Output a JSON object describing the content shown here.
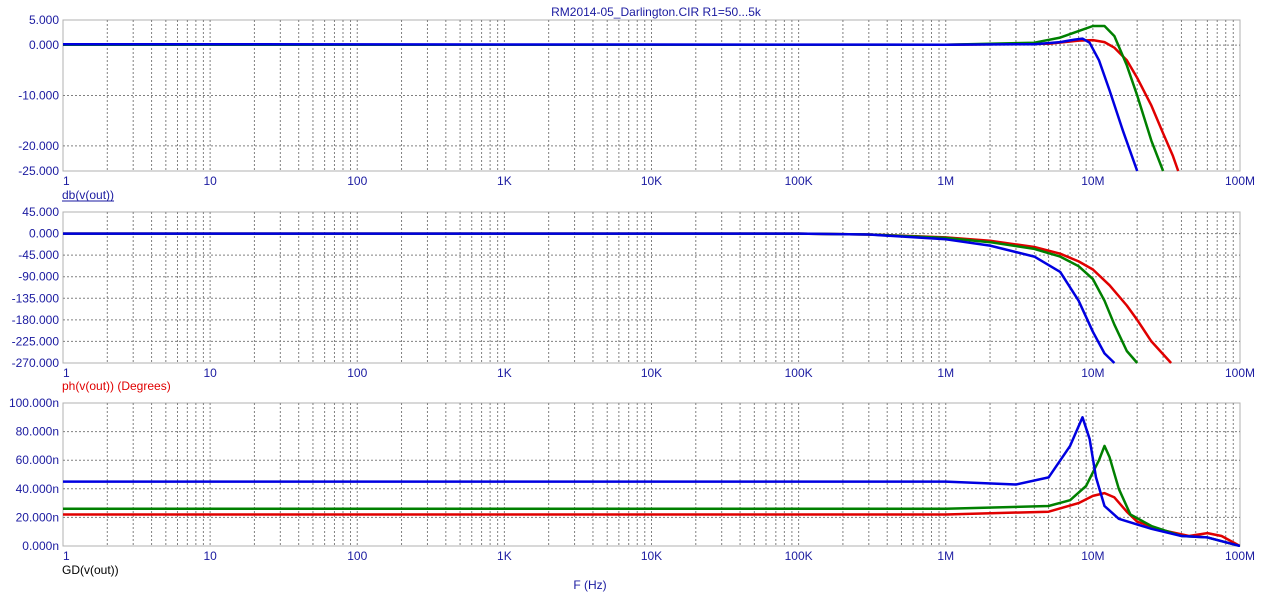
{
  "window": {
    "title": "RM2014-05_Darlington.CIR R1=50...5k"
  },
  "colors": {
    "text": "#1a1aa0",
    "grid": "#808080",
    "frame": "#b0b0b0",
    "red": "#e00000",
    "green": "#008000",
    "blue": "#0000e0"
  },
  "chart_data": [
    {
      "type": "line",
      "title": "RM2014-05_Darlington.CIR R1=50...5k",
      "xlabel": "",
      "ylabel": "db(v(out))",
      "x_scale": "log",
      "xlim": [
        1,
        100000000
      ],
      "ylim": [
        -25,
        5
      ],
      "y_ticks": [
        "5.000",
        "0.000",
        "-10.000",
        "-20.000",
        "-25.000"
      ],
      "y_tick_values": [
        5,
        0,
        -10,
        -20,
        -25
      ],
      "x_ticks": [
        "1",
        "10",
        "100",
        "1K",
        "10K",
        "100K",
        "1M",
        "10M",
        "100M"
      ],
      "series": [
        {
          "color": "red",
          "points": [
            [
              1,
              0.1
            ],
            [
              1000000,
              0.1
            ],
            [
              5000000,
              0.3
            ],
            [
              8000000,
              0.9
            ],
            [
              10000000,
              1.0
            ],
            [
              12000000,
              0.6
            ],
            [
              14000000,
              -0.5
            ],
            [
              17000000,
              -3
            ],
            [
              20000000,
              -6.5
            ],
            [
              25000000,
              -12
            ],
            [
              30000000,
              -17.5
            ],
            [
              35000000,
              -22
            ],
            [
              38000000,
              -25
            ]
          ]
        },
        {
          "color": "green",
          "points": [
            [
              1,
              0.1
            ],
            [
              1000000,
              0.1
            ],
            [
              4000000,
              0.5
            ],
            [
              6000000,
              1.5
            ],
            [
              8000000,
              2.8
            ],
            [
              10000000,
              3.8
            ],
            [
              12000000,
              3.8
            ],
            [
              14000000,
              1.8
            ],
            [
              17000000,
              -4
            ],
            [
              20000000,
              -10
            ],
            [
              25000000,
              -19
            ],
            [
              30000000,
              -25
            ]
          ]
        },
        {
          "color": "blue",
          "points": [
            [
              1,
              0.2
            ],
            [
              1000000,
              0.1
            ],
            [
              4000000,
              0.2
            ],
            [
              6000000,
              0.6
            ],
            [
              7500000,
              1.1
            ],
            [
              8500000,
              1.3
            ],
            [
              9500000,
              0.5
            ],
            [
              11000000,
              -3
            ],
            [
              13000000,
              -9
            ],
            [
              16000000,
              -17
            ],
            [
              20000000,
              -25
            ]
          ]
        }
      ]
    },
    {
      "type": "line",
      "xlabel": "",
      "ylabel": "ph(v(out)) (Degrees)",
      "x_scale": "log",
      "xlim": [
        1,
        100000000
      ],
      "ylim": [
        -270,
        45
      ],
      "y_ticks": [
        "45.000",
        "0.000",
        "-45.000",
        "-90.000",
        "-135.000",
        "-180.000",
        "-225.000",
        "-270.000"
      ],
      "y_tick_values": [
        45,
        0,
        -45,
        -90,
        -135,
        -180,
        -225,
        -270
      ],
      "x_ticks": [
        "1",
        "10",
        "100",
        "1K",
        "10K",
        "100K",
        "1M",
        "10M",
        "100M"
      ],
      "series": [
        {
          "color": "red",
          "points": [
            [
              1,
              0
            ],
            [
              100000,
              0
            ],
            [
              300000,
              -2
            ],
            [
              1000000,
              -8
            ],
            [
              2000000,
              -15
            ],
            [
              4000000,
              -28
            ],
            [
              6000000,
              -42
            ],
            [
              8000000,
              -58
            ],
            [
              10000000,
              -75
            ],
            [
              13000000,
              -108
            ],
            [
              17000000,
              -150
            ],
            [
              20000000,
              -180
            ],
            [
              25000000,
              -225
            ],
            [
              34000000,
              -270
            ]
          ]
        },
        {
          "color": "green",
          "points": [
            [
              1,
              0
            ],
            [
              100000,
              0
            ],
            [
              300000,
              -2
            ],
            [
              1000000,
              -9
            ],
            [
              2000000,
              -18
            ],
            [
              4000000,
              -32
            ],
            [
              6000000,
              -48
            ],
            [
              8000000,
              -68
            ],
            [
              10000000,
              -95
            ],
            [
              12000000,
              -140
            ],
            [
              14000000,
              -190
            ],
            [
              17000000,
              -245
            ],
            [
              20000000,
              -270
            ]
          ]
        },
        {
          "color": "blue",
          "points": [
            [
              1,
              0
            ],
            [
              100000,
              0
            ],
            [
              300000,
              -2
            ],
            [
              1000000,
              -12
            ],
            [
              2000000,
              -25
            ],
            [
              4000000,
              -48
            ],
            [
              6000000,
              -80
            ],
            [
              8000000,
              -140
            ],
            [
              10000000,
              -205
            ],
            [
              12000000,
              -250
            ],
            [
              14000000,
              -270
            ]
          ]
        }
      ]
    },
    {
      "type": "line",
      "xlabel": "F (Hz)",
      "ylabel": "GD(v(out))",
      "x_scale": "log",
      "xlim": [
        1,
        100000000
      ],
      "ylim": [
        0,
        100
      ],
      "y_ticks": [
        "100.000n",
        "80.000n",
        "60.000n",
        "40.000n",
        "20.000n",
        "0.000n"
      ],
      "y_tick_values": [
        100,
        80,
        60,
        40,
        20,
        0
      ],
      "x_ticks": [
        "1",
        "10",
        "100",
        "1K",
        "10K",
        "100K",
        "1M",
        "10M",
        "100M"
      ],
      "series": [
        {
          "color": "red",
          "points": [
            [
              1,
              22
            ],
            [
              1000000,
              22
            ],
            [
              5000000,
              24
            ],
            [
              8000000,
              30
            ],
            [
              10000000,
              35
            ],
            [
              12000000,
              37
            ],
            [
              14000000,
              34
            ],
            [
              17000000,
              24
            ],
            [
              20000000,
              17
            ],
            [
              30000000,
              11
            ],
            [
              45000000,
              7
            ],
            [
              60000000,
              9
            ],
            [
              75000000,
              7
            ],
            [
              100000000,
              0
            ]
          ]
        },
        {
          "color": "green",
          "points": [
            [
              1,
              26
            ],
            [
              1000000,
              26
            ],
            [
              5000000,
              28
            ],
            [
              7000000,
              32
            ],
            [
              9000000,
              42
            ],
            [
              11000000,
              60
            ],
            [
              12000000,
              70
            ],
            [
              13000000,
              62
            ],
            [
              15000000,
              40
            ],
            [
              18000000,
              22
            ],
            [
              25000000,
              14
            ],
            [
              40000000,
              7
            ],
            [
              60000000,
              6
            ],
            [
              100000000,
              0
            ]
          ]
        },
        {
          "color": "blue",
          "points": [
            [
              1,
              45
            ],
            [
              1000000,
              45
            ],
            [
              3000000,
              43
            ],
            [
              5000000,
              48
            ],
            [
              7000000,
              70
            ],
            [
              8500000,
              90
            ],
            [
              9500000,
              75
            ],
            [
              10500000,
              48
            ],
            [
              12000000,
              28
            ],
            [
              15000000,
              19
            ],
            [
              25000000,
              12
            ],
            [
              40000000,
              7
            ],
            [
              60000000,
              6
            ],
            [
              100000000,
              0
            ]
          ]
        }
      ]
    }
  ]
}
